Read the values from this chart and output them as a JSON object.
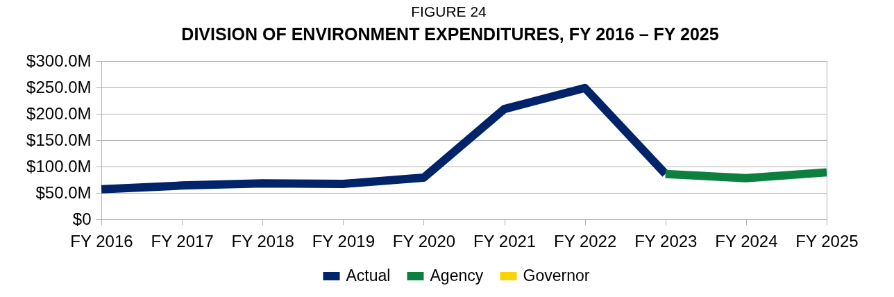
{
  "chart_data": {
    "type": "line",
    "subtitle": "FIGURE 24",
    "title": "DIVISION OF ENVIRONMENT EXPENDITURES, FY 2016 – FY 2025",
    "categories": [
      "FY 2016",
      "FY 2017",
      "FY 2018",
      "FY 2019",
      "FY 2020",
      "FY 2021",
      "FY 2022",
      "FY 2023",
      "FY 2024",
      "FY 2025"
    ],
    "series": [
      {
        "name": "Actual",
        "color": "#00236a",
        "values": [
          57,
          64,
          68,
          67,
          79,
          209,
          249,
          86,
          null,
          null
        ]
      },
      {
        "name": "Agency",
        "color": "#0d7f3f",
        "values": [
          null,
          null,
          null,
          null,
          null,
          null,
          null,
          86,
          78,
          89
        ]
      },
      {
        "name": "Governor",
        "color": "#fcd200",
        "values": [
          null,
          null,
          null,
          null,
          null,
          null,
          null,
          null,
          null,
          null
        ]
      }
    ],
    "ylim": [
      0,
      300
    ],
    "yticks": [
      {
        "value": 0,
        "label": "$0"
      },
      {
        "value": 50,
        "label": "$50.0M"
      },
      {
        "value": 100,
        "label": "$100.0M"
      },
      {
        "value": 150,
        "label": "$150.0M"
      },
      {
        "value": 200,
        "label": "$200.0M"
      },
      {
        "value": 250,
        "label": "$250.0M"
      },
      {
        "value": 300,
        "label": "$300.0M"
      }
    ],
    "grid": "y",
    "legend": "bottom",
    "line_style": "solid"
  }
}
